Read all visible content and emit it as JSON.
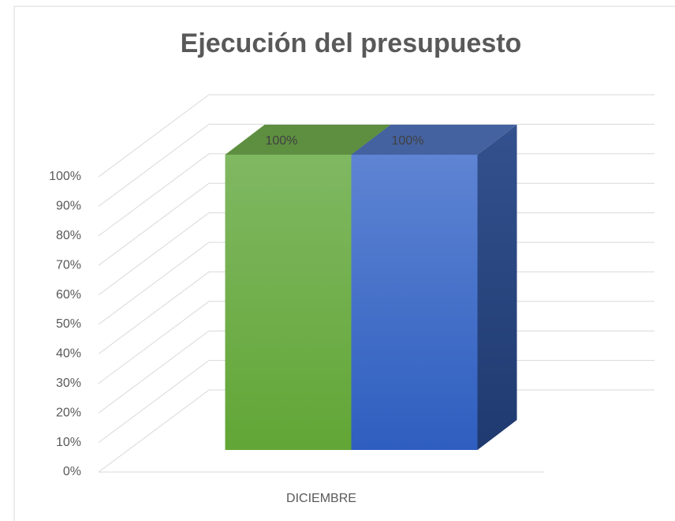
{
  "chart_data": {
    "type": "bar3d",
    "title": "Ejecución del presupuesto",
    "categories": [
      "DICIEMBRE"
    ],
    "series": [
      {
        "color": "#70ad47",
        "values": [
          100
        ],
        "value_labels": [
          "100%"
        ]
      },
      {
        "color": "#4472c4",
        "values": [
          100
        ],
        "value_labels": [
          "100%"
        ]
      }
    ],
    "ylim": [
      0,
      100
    ],
    "yticks": [
      {
        "value": 0,
        "label": "0%"
      },
      {
        "value": 10,
        "label": "10%"
      },
      {
        "value": 20,
        "label": "20%"
      },
      {
        "value": 30,
        "label": "30%"
      },
      {
        "value": 40,
        "label": "40%"
      },
      {
        "value": 50,
        "label": "50%"
      },
      {
        "value": 60,
        "label": "60%"
      },
      {
        "value": 70,
        "label": "70%"
      },
      {
        "value": 80,
        "label": "80%"
      },
      {
        "value": 90,
        "label": "90%"
      },
      {
        "value": 100,
        "label": "100%"
      }
    ],
    "grid": true
  }
}
